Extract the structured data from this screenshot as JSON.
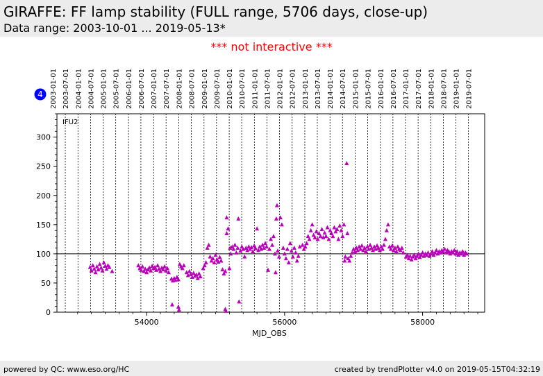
{
  "header": {
    "title": "GIRAFFE: FF lamp stability (FULL range, 5706 days, close-up)",
    "subtitle": "Data range: 2003-10-01 ... 2019-05-13*"
  },
  "notice": "*** not interactive ***",
  "footer": {
    "left": "powered by QC: www.eso.org/HC",
    "right": "created by trendPlotter v4.0 on 2019-05-15T04:32:19"
  },
  "colors": {
    "marker": "#bb00bb",
    "badge": "#0000ff",
    "notice": "#ff0000"
  },
  "chart_data": {
    "type": "scatter",
    "panel_label": "IFU2",
    "badge": "4",
    "xlabel": "MJD_OBS",
    "ylabel": "",
    "xlim": [
      52700,
      58900
    ],
    "ylim": [
      0,
      340
    ],
    "x_ticks": [
      54000,
      56000,
      58000
    ],
    "y_ticks": [
      0,
      50,
      100,
      150,
      200,
      250,
      300
    ],
    "reference_line": 100,
    "date_ticks": [
      {
        "label": "2003-01-01",
        "mjd": 52640
      },
      {
        "label": "2003-07-01",
        "mjd": 52821
      },
      {
        "label": "2004-01-01",
        "mjd": 53005
      },
      {
        "label": "2004-07-01",
        "mjd": 53187
      },
      {
        "label": "2005-01-01",
        "mjd": 53371
      },
      {
        "label": "2005-07-01",
        "mjd": 53552
      },
      {
        "label": "2006-01-01",
        "mjd": 53736
      },
      {
        "label": "2006-07-01",
        "mjd": 53917
      },
      {
        "label": "2007-01-01",
        "mjd": 54101
      },
      {
        "label": "2007-07-01",
        "mjd": 54282
      },
      {
        "label": "2008-01-01",
        "mjd": 54466
      },
      {
        "label": "2008-07-01",
        "mjd": 54648
      },
      {
        "label": "2009-01-01",
        "mjd": 54832
      },
      {
        "label": "2009-07-01",
        "mjd": 55013
      },
      {
        "label": "2010-01-01",
        "mjd": 55197
      },
      {
        "label": "2010-07-01",
        "mjd": 55378
      },
      {
        "label": "2011-01-01",
        "mjd": 55562
      },
      {
        "label": "2011-07-01",
        "mjd": 55743
      },
      {
        "label": "2012-01-01",
        "mjd": 55927
      },
      {
        "label": "2012-07-01",
        "mjd": 56109
      },
      {
        "label": "2013-01-01",
        "mjd": 56293
      },
      {
        "label": "2013-07-01",
        "mjd": 56474
      },
      {
        "label": "2014-01-01",
        "mjd": 56658
      },
      {
        "label": "2014-07-01",
        "mjd": 56839
      },
      {
        "label": "2015-01-01",
        "mjd": 57023
      },
      {
        "label": "2015-07-01",
        "mjd": 57204
      },
      {
        "label": "2016-01-01",
        "mjd": 57388
      },
      {
        "label": "2016-07-01",
        "mjd": 57570
      },
      {
        "label": "2017-01-01",
        "mjd": 57754
      },
      {
        "label": "2017-07-01",
        "mjd": 57935
      },
      {
        "label": "2018-01-01",
        "mjd": 58119
      },
      {
        "label": "2018-07-01",
        "mjd": 58300
      },
      {
        "label": "2019-01-01",
        "mjd": 58484
      },
      {
        "label": "2019-07-01",
        "mjd": 58665
      }
    ],
    "series": [
      {
        "name": "IFU2",
        "marker": "triangle",
        "points": [
          [
            53180,
            77
          ],
          [
            53200,
            71
          ],
          [
            53220,
            80
          ],
          [
            53240,
            74
          ],
          [
            53260,
            68
          ],
          [
            53280,
            78
          ],
          [
            53300,
            73
          ],
          [
            53320,
            82
          ],
          [
            53340,
            76
          ],
          [
            53360,
            71
          ],
          [
            53380,
            85
          ],
          [
            53400,
            79
          ],
          [
            53420,
            74
          ],
          [
            53440,
            80
          ],
          [
            53460,
            77
          ],
          [
            53500,
            70
          ],
          [
            53880,
            80
          ],
          [
            53900,
            75
          ],
          [
            53920,
            72
          ],
          [
            53940,
            78
          ],
          [
            53960,
            70
          ],
          [
            53980,
            74
          ],
          [
            54000,
            68
          ],
          [
            54020,
            73
          ],
          [
            54040,
            76
          ],
          [
            54060,
            71
          ],
          [
            54080,
            79
          ],
          [
            54100,
            75
          ],
          [
            54120,
            77
          ],
          [
            54140,
            72
          ],
          [
            54160,
            80
          ],
          [
            54180,
            74
          ],
          [
            54200,
            70
          ],
          [
            54220,
            76
          ],
          [
            54240,
            73
          ],
          [
            54260,
            78
          ],
          [
            54280,
            71
          ],
          [
            54300,
            75
          ],
          [
            54320,
            68
          ],
          [
            54360,
            57
          ],
          [
            54380,
            54
          ],
          [
            54400,
            58
          ],
          [
            54420,
            55
          ],
          [
            54440,
            60
          ],
          [
            54460,
            56
          ],
          [
            54370,
            13
          ],
          [
            54460,
            9
          ],
          [
            54470,
            4
          ],
          [
            54480,
            82
          ],
          [
            54500,
            78
          ],
          [
            54520,
            75
          ],
          [
            54540,
            80
          ],
          [
            54580,
            68
          ],
          [
            54600,
            63
          ],
          [
            54620,
            70
          ],
          [
            54640,
            65
          ],
          [
            54660,
            60
          ],
          [
            54680,
            67
          ],
          [
            54700,
            62
          ],
          [
            54720,
            64
          ],
          [
            54740,
            58
          ],
          [
            54760,
            66
          ],
          [
            54780,
            61
          ],
          [
            54820,
            75
          ],
          [
            54840,
            80
          ],
          [
            54860,
            85
          ],
          [
            54880,
            110
          ],
          [
            54900,
            115
          ],
          [
            54920,
            95
          ],
          [
            54940,
            88
          ],
          [
            54960,
            92
          ],
          [
            54980,
            85
          ],
          [
            55000,
            98
          ],
          [
            55020,
            90
          ],
          [
            55040,
            86
          ],
          [
            55060,
            94
          ],
          [
            55080,
            88
          ],
          [
            55100,
            73
          ],
          [
            55120,
            66
          ],
          [
            55140,
            70
          ],
          [
            55140,
            5
          ],
          [
            55150,
            2
          ],
          [
            55160,
            135
          ],
          [
            55160,
            162
          ],
          [
            55180,
            143
          ],
          [
            55200,
            75
          ],
          [
            55210,
            110
          ],
          [
            55220,
            100
          ],
          [
            55240,
            112
          ],
          [
            55260,
            108
          ],
          [
            55280,
            115
          ],
          [
            55300,
            102
          ],
          [
            55320,
            110
          ],
          [
            55330,
            160
          ],
          [
            55340,
            18
          ],
          [
            55360,
            105
          ],
          [
            55380,
            112
          ],
          [
            55400,
            108
          ],
          [
            55420,
            95
          ],
          [
            55440,
            110
          ],
          [
            55460,
            106
          ],
          [
            55480,
            112
          ],
          [
            55500,
            108
          ],
          [
            55520,
            111
          ],
          [
            55540,
            104
          ],
          [
            55560,
            114
          ],
          [
            55580,
            109
          ],
          [
            55600,
            143
          ],
          [
            55620,
            106
          ],
          [
            55640,
            112
          ],
          [
            55660,
            108
          ],
          [
            55680,
            115
          ],
          [
            55700,
            110
          ],
          [
            55720,
            118
          ],
          [
            55740,
            112
          ],
          [
            55760,
            72
          ],
          [
            55780,
            108
          ],
          [
            55800,
            125
          ],
          [
            55820,
            115
          ],
          [
            55840,
            130
          ],
          [
            55860,
            100
          ],
          [
            55870,
            68
          ],
          [
            55880,
            160
          ],
          [
            55890,
            183
          ],
          [
            55900,
            105
          ],
          [
            55920,
            95
          ],
          [
            55940,
            162
          ],
          [
            55960,
            150
          ],
          [
            55980,
            110
          ],
          [
            56000,
            100
          ],
          [
            56020,
            92
          ],
          [
            56040,
            108
          ],
          [
            56060,
            85
          ],
          [
            56080,
            118
          ],
          [
            56100,
            105
          ],
          [
            56120,
            95
          ],
          [
            56140,
            110
          ],
          [
            56160,
            102
          ],
          [
            56180,
            88
          ],
          [
            56200,
            96
          ],
          [
            56220,
            112
          ],
          [
            56260,
            115
          ],
          [
            56280,
            108
          ],
          [
            56300,
            112
          ],
          [
            56320,
            118
          ],
          [
            56340,
            130
          ],
          [
            56360,
            125
          ],
          [
            56380,
            140
          ],
          [
            56400,
            150
          ],
          [
            56420,
            132
          ],
          [
            56440,
            128
          ],
          [
            56460,
            138
          ],
          [
            56480,
            125
          ],
          [
            56500,
            135
          ],
          [
            56520,
            130
          ],
          [
            56540,
            142
          ],
          [
            56560,
            128
          ],
          [
            56580,
            136
          ],
          [
            56600,
            130
          ],
          [
            56620,
            145
          ],
          [
            56640,
            125
          ],
          [
            56660,
            140
          ],
          [
            56680,
            135
          ],
          [
            56700,
            130
          ],
          [
            56720,
            145
          ],
          [
            56740,
            138
          ],
          [
            56760,
            142
          ],
          [
            56780,
            125
          ],
          [
            56800,
            148
          ],
          [
            56820,
            140
          ],
          [
            56840,
            130
          ],
          [
            56860,
            150
          ],
          [
            56870,
            88
          ],
          [
            56880,
            95
          ],
          [
            56900,
            255
          ],
          [
            56910,
            135
          ],
          [
            56920,
            92
          ],
          [
            56940,
            88
          ],
          [
            56960,
            96
          ],
          [
            56980,
            102
          ],
          [
            57000,
            108
          ],
          [
            57020,
            104
          ],
          [
            57040,
            110
          ],
          [
            57060,
            106
          ],
          [
            57080,
            112
          ],
          [
            57100,
            108
          ],
          [
            57120,
            114
          ],
          [
            57140,
            106
          ],
          [
            57160,
            110
          ],
          [
            57180,
            104
          ],
          [
            57200,
            112
          ],
          [
            57220,
            108
          ],
          [
            57240,
            115
          ],
          [
            57260,
            110
          ],
          [
            57280,
            106
          ],
          [
            57300,
            112
          ],
          [
            57320,
            108
          ],
          [
            57340,
            114
          ],
          [
            57360,
            110
          ],
          [
            57380,
            106
          ],
          [
            57400,
            112
          ],
          [
            57420,
            108
          ],
          [
            57440,
            115
          ],
          [
            57460,
            125
          ],
          [
            57480,
            140
          ],
          [
            57500,
            150
          ],
          [
            57520,
            112
          ],
          [
            57540,
            108
          ],
          [
            57560,
            114
          ],
          [
            57580,
            106
          ],
          [
            57600,
            110
          ],
          [
            57620,
            104
          ],
          [
            57640,
            112
          ],
          [
            57660,
            108
          ],
          [
            57680,
            106
          ],
          [
            57700,
            110
          ],
          [
            57720,
            102
          ],
          [
            57760,
            95
          ],
          [
            57780,
            98
          ],
          [
            57800,
            92
          ],
          [
            57820,
            96
          ],
          [
            57840,
            90
          ],
          [
            57860,
            95
          ],
          [
            57880,
            98
          ],
          [
            57900,
            92
          ],
          [
            57920,
            96
          ],
          [
            57940,
            100
          ],
          [
            57960,
            94
          ],
          [
            57980,
            98
          ],
          [
            58000,
            102
          ],
          [
            58020,
            96
          ],
          [
            58040,
            100
          ],
          [
            58060,
            98
          ],
          [
            58080,
            102
          ],
          [
            58100,
            96
          ],
          [
            58120,
            100
          ],
          [
            58140,
            104
          ],
          [
            58160,
            98
          ],
          [
            58180,
            102
          ],
          [
            58200,
            106
          ],
          [
            58220,
            100
          ],
          [
            58240,
            104
          ],
          [
            58260,
            102
          ],
          [
            58280,
            106
          ],
          [
            58300,
            104
          ],
          [
            58320,
            108
          ],
          [
            58340,
            102
          ],
          [
            58360,
            106
          ],
          [
            58380,
            104
          ],
          [
            58400,
            100
          ],
          [
            58420,
            104
          ],
          [
            58440,
            102
          ],
          [
            58460,
            106
          ],
          [
            58480,
            100
          ],
          [
            58500,
            104
          ],
          [
            58520,
            98
          ],
          [
            58540,
            102
          ],
          [
            58560,
            100
          ],
          [
            58580,
            104
          ],
          [
            58600,
            98
          ],
          [
            58620,
            102
          ],
          [
            58640,
            100
          ]
        ]
      }
    ]
  }
}
